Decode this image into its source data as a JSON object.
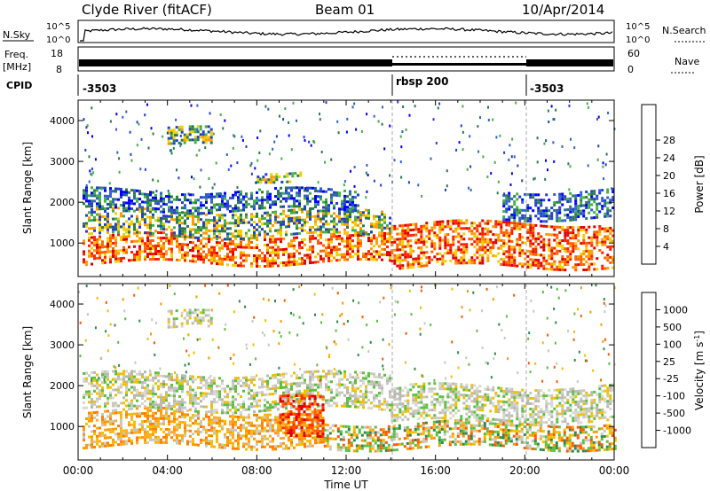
{
  "header": {
    "station": "Clyde River (fitACF)",
    "beam": "Beam 01",
    "date": "10/Apr/2014"
  },
  "noise_panel": {
    "left_label": "N.Sky",
    "right_label": "N.Search",
    "left_ticks": [
      "10^5",
      "10^0"
    ],
    "right_ticks": [
      "10^5",
      "10^0"
    ]
  },
  "freq_panel": {
    "left_label_line1": "Freq.",
    "left_label_line2": "[MHz]",
    "left_ticks": [
      "18",
      "8"
    ],
    "right_label": "Nave",
    "right_ticks": [
      "60",
      "0"
    ]
  },
  "cpid_panel": {
    "label": "CPID",
    "segments": [
      {
        "start_hour": 0,
        "text": "-3503"
      },
      {
        "start_hour": 14,
        "text": "rbsp 200"
      },
      {
        "start_hour": 20,
        "text": "-3503"
      }
    ]
  },
  "power_colorbar": {
    "label": "Power [dB]",
    "ticks": [
      "4",
      "8",
      "12",
      "16",
      "20",
      "24",
      "28"
    ],
    "colors": [
      "#0000ff",
      "#2340c8",
      "#2a7a4a",
      "#43b043",
      "#f0d000",
      "#ff9a00",
      "#ff6000",
      "#ff2000",
      "#e00000"
    ]
  },
  "velocity_colorbar": {
    "label": "Velocity [m s",
    "label_sup": "-1",
    "label_end": "]",
    "ticks": [
      "1000",
      "500",
      "100",
      "25",
      "-25",
      "-100",
      "-500",
      "-1000"
    ],
    "colors": [
      "#1a2ec8",
      "#2a5aa0",
      "#2e8a4a",
      "#5ac040",
      "#c8c8c0",
      "#f0c000",
      "#ff9a00",
      "#ff5a00",
      "#e00000"
    ]
  },
  "chart_data": [
    {
      "type": "heatmap",
      "name": "power",
      "ylabel": "Slant Range [km]",
      "x_unit": "hour UT",
      "xlim": [
        0,
        24
      ],
      "ylim": [
        180,
        4500
      ],
      "yticks": [
        1000,
        2000,
        3000,
        4000
      ],
      "mode_change_hours": [
        14,
        20
      ],
      "bands": [
        {
          "t0": 0.2,
          "t1": 14,
          "r0": 500,
          "r1": 1200,
          "level": "high"
        },
        {
          "t0": 0.2,
          "t1": 14,
          "r0": 1200,
          "r1": 1800,
          "level": "mid"
        },
        {
          "t0": 0.2,
          "t1": 12.5,
          "r0": 1800,
          "r1": 2300,
          "level": "low"
        },
        {
          "t0": 14,
          "t1": 24,
          "r0": 450,
          "r1": 1500,
          "level": "high"
        },
        {
          "t0": 19,
          "t1": 24,
          "r0": 1600,
          "r1": 2300,
          "level": "low"
        },
        {
          "t0": 4,
          "t1": 6,
          "r0": 3400,
          "r1": 3800,
          "level": "mid"
        },
        {
          "t0": 8,
          "t1": 10,
          "r0": 2600,
          "r1": 2800,
          "level": "mid"
        }
      ]
    },
    {
      "type": "heatmap",
      "name": "velocity",
      "xlabel": "Time UT",
      "ylabel": "Slant Range [km]",
      "x_unit": "hour UT",
      "xlim": [
        0,
        24
      ],
      "ylim": [
        180,
        4500
      ],
      "yticks": [
        1000,
        2000,
        3000,
        4000
      ],
      "xticks": [
        "00:00",
        "04:00",
        "08:00",
        "12:00",
        "16:00",
        "20:00",
        "00:00"
      ],
      "mode_change_hours": [
        14,
        20
      ],
      "bands": [
        {
          "t0": 0.2,
          "t1": 11,
          "r0": 550,
          "r1": 1400,
          "level": "neg_medium"
        },
        {
          "t0": 0.2,
          "t1": 14,
          "r0": 1400,
          "r1": 2300,
          "level": "near_zero"
        },
        {
          "t0": 9,
          "t1": 11,
          "r0": 700,
          "r1": 1700,
          "level": "neg_strong"
        },
        {
          "t0": 11,
          "t1": 24,
          "r0": 500,
          "r1": 1100,
          "level": "mixed"
        },
        {
          "t0": 14,
          "t1": 24,
          "r0": 1100,
          "r1": 2000,
          "level": "near_zero"
        },
        {
          "t0": 4,
          "t1": 6,
          "r0": 3400,
          "r1": 3800,
          "level": "near_zero"
        }
      ]
    }
  ]
}
